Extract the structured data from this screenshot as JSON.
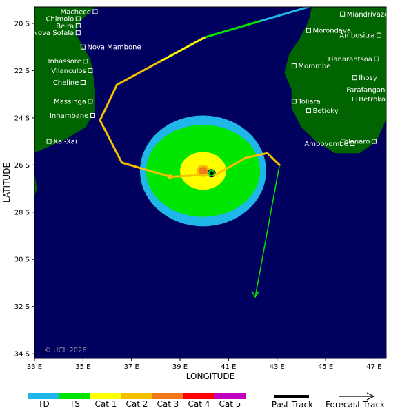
{
  "map": {
    "xlabel": "LONGITUDE",
    "ylabel": "LATITUDE",
    "lon_range": [
      33,
      47.5
    ],
    "lat_range": [
      -34.2,
      -19.3
    ],
    "lon_ticks": [
      33,
      35,
      37,
      39,
      41,
      43,
      45,
      47
    ],
    "lat_ticks": [
      -20,
      -22,
      -24,
      -26,
      -28,
      -30,
      -32,
      -34
    ],
    "lon_tick_labels": [
      "33 E",
      "35 E",
      "37 E",
      "39 E",
      "41 E",
      "43 E",
      "45 E",
      "47 E"
    ],
    "lat_tick_labels": [
      "20 S",
      "22 S",
      "24 S",
      "26 S",
      "28 S",
      "30 S",
      "32 S",
      "34 S"
    ],
    "copyright": "© UCL 2026",
    "colors": {
      "ocean": "#00005f",
      "land": "#006400",
      "TD": "#1fb7ea",
      "TS": "#00e600",
      "Cat1": "#ffff00",
      "Cat2": "#f5c000",
      "Cat3": "#f07818",
      "Cat4": "#ff0000",
      "Cat5": "#c000c0"
    }
  },
  "cities_left": [
    {
      "name": "Machece",
      "lon": 35.5,
      "lat": -19.5
    },
    {
      "name": "Chimoio",
      "lon": 34.8,
      "lat": -19.8
    },
    {
      "name": "Beira",
      "lon": 34.8,
      "lat": -20.1
    },
    {
      "name": "Nova Sofala",
      "lon": 34.8,
      "lat": -20.4
    },
    {
      "name": "Nova Mambone",
      "lon": 35.0,
      "lat": -21.0
    },
    {
      "name": "Inhassore",
      "lon": 35.1,
      "lat": -21.6
    },
    {
      "name": "Vilanculos",
      "lon": 35.3,
      "lat": -22.0
    },
    {
      "name": "Cheline",
      "lon": 35.0,
      "lat": -22.5
    },
    {
      "name": "Massinga",
      "lon": 35.3,
      "lat": -23.3
    },
    {
      "name": "Inhambane",
      "lon": 35.4,
      "lat": -23.9
    },
    {
      "name": "Xai-Xai",
      "lon": 33.6,
      "lat": -25.0
    }
  ],
  "cities_right": [
    {
      "name": "Miandrivazo",
      "lon": 45.7,
      "lat": -19.6
    },
    {
      "name": "Morondava",
      "lon": 44.3,
      "lat": -20.3
    },
    {
      "name": "Ambositra",
      "lon": 47.2,
      "lat": -20.5
    },
    {
      "name": "Fianarantsoa",
      "lon": 47.1,
      "lat": -21.5
    },
    {
      "name": "Morombe",
      "lon": 43.7,
      "lat": -21.8
    },
    {
      "name": "Ihosy",
      "lon": 46.2,
      "lat": -22.3
    },
    {
      "name": "Farafangana",
      "lon": 47.8,
      "lat": -22.8
    },
    {
      "name": "Betroka",
      "lon": 46.2,
      "lat": -23.2
    },
    {
      "name": "Toliara",
      "lon": 43.7,
      "lat": -23.3
    },
    {
      "name": "Betioky",
      "lon": 44.3,
      "lat": -23.7
    },
    {
      "name": "Tolanaro",
      "lon": 47.0,
      "lat": -25.0
    },
    {
      "name": "Ambovombe",
      "lon": 46.1,
      "lat": -25.1
    }
  ],
  "past_track": [
    {
      "lon": 44.3,
      "lat": -19.3,
      "cat": "TD"
    },
    {
      "lon": 42.3,
      "lat": -19.9,
      "cat": "TS"
    },
    {
      "lon": 40.0,
      "lat": -20.6,
      "cat": "Cat1"
    },
    {
      "lon": 38.2,
      "lat": -21.6,
      "cat": "Cat2"
    },
    {
      "lon": 36.4,
      "lat": -22.6,
      "cat": "Cat2"
    },
    {
      "lon": 35.7,
      "lat": -24.1,
      "cat": "Cat2"
    },
    {
      "lon": 36.6,
      "lat": -25.9,
      "cat": "Cat2"
    },
    {
      "lon": 38.6,
      "lat": -26.5,
      "cat": "Cat2"
    },
    {
      "lon": 40.5,
      "lat": -26.4,
      "cat": "Cat2"
    },
    {
      "lon": 41.7,
      "lat": -25.7,
      "cat": "Cat2"
    },
    {
      "lon": 42.6,
      "lat": -25.5,
      "cat": "Cat2"
    },
    {
      "lon": 43.1,
      "lat": -26.0,
      "cat": "Cat2"
    }
  ],
  "forecast_track": [
    {
      "lon": 43.1,
      "lat": -26.0,
      "cat": "TS"
    },
    {
      "lon": 42.1,
      "lat": -31.6,
      "cat": "TS"
    }
  ],
  "thin_track": [
    {
      "lon": 38.6,
      "lat": -26.5
    },
    {
      "lon": 40.3,
      "lat": -26.4
    }
  ],
  "current_position": {
    "lon": 40.3,
    "lat": -26.35
  },
  "wind_swath": [
    {
      "cat": "TD",
      "rx": 2.6,
      "ry": 2.35
    },
    {
      "cat": "TS",
      "rx": 2.35,
      "ry": 1.95
    },
    {
      "cat": "Cat1",
      "rx": 0.95,
      "ry": 0.8
    },
    {
      "cat": "Cat2",
      "rx": 0.28,
      "ry": 0.26
    },
    {
      "cat": "Cat3",
      "rx": 0.18,
      "ry": 0.17
    }
  ],
  "swath_center": {
    "lon": 39.95,
    "lat": -26.25
  },
  "legend": {
    "scale": [
      {
        "label": "TD",
        "cat": "TD"
      },
      {
        "label": "TS",
        "cat": "TS"
      },
      {
        "label": "Cat 1",
        "cat": "Cat1"
      },
      {
        "label": "Cat 2",
        "cat": "Cat2"
      },
      {
        "label": "Cat 3",
        "cat": "Cat3"
      },
      {
        "label": "Cat 4",
        "cat": "Cat4"
      },
      {
        "label": "Cat 5",
        "cat": "Cat5"
      }
    ],
    "past_label": "Past Track",
    "forecast_label": "Forecast Track"
  }
}
